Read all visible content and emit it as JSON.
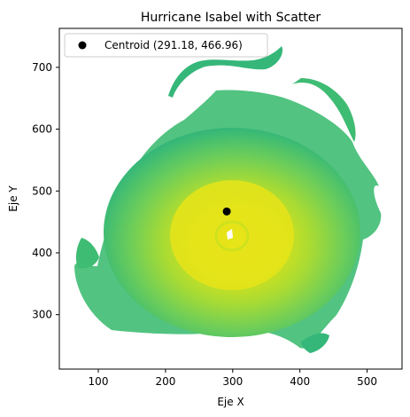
{
  "chart_data": {
    "type": "scatter",
    "title": "Hurricane Isabel with Scatter",
    "xlabel": "Eje X",
    "ylabel": "Eje Y",
    "xlim": [
      42,
      552
    ],
    "ylim": [
      212,
      763
    ],
    "xticks": [
      100,
      200,
      300,
      400,
      500
    ],
    "yticks": [
      300,
      400,
      500,
      600,
      700
    ],
    "grid": false,
    "legend": "upper-left",
    "background_image": "hurricane-isabel-field",
    "colormap": "viridis",
    "series": [
      {
        "name": "Centroid (291.18, 466.96)",
        "marker": "circle",
        "color": "#000000",
        "points": [
          [
            291.18,
            466.96
          ]
        ]
      }
    ]
  }
}
